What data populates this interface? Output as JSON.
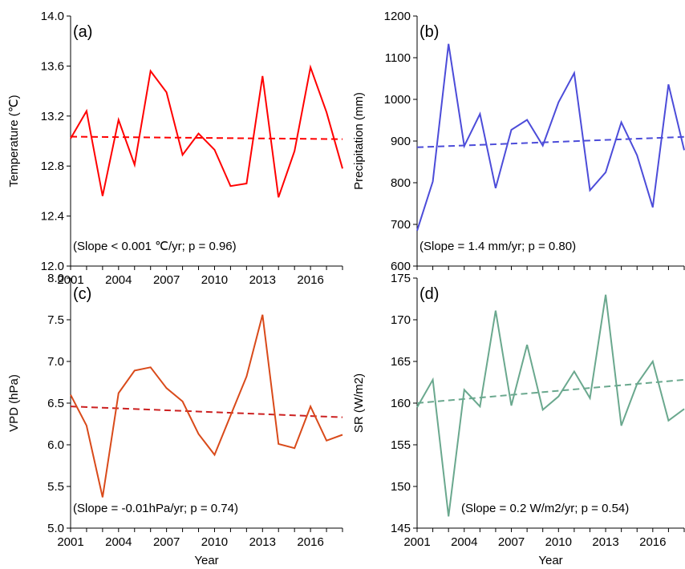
{
  "chart_data": [
    {
      "type": "line",
      "panel_label": "(a)",
      "ylabel": "Temperature (℃)",
      "xlabel": "",
      "annotation": "(Slope < 0.001 ℃/yr; p = 0.96)",
      "ylim": [
        12.0,
        14.0
      ],
      "yticks": [
        "12.0",
        "12.4",
        "12.8",
        "13.2",
        "13.6",
        "14.0"
      ],
      "xlim": [
        2001,
        2018
      ],
      "xticks": [
        "2001",
        "2004",
        "2007",
        "2010",
        "2013",
        "2016"
      ],
      "grid": false,
      "color": "#ff0000",
      "trend_color": "#ff0000",
      "x": [
        2001,
        2002,
        2003,
        2004,
        2005,
        2006,
        2007,
        2008,
        2009,
        2010,
        2011,
        2012,
        2013,
        2014,
        2015,
        2016,
        2017,
        2018
      ],
      "values": [
        13.02,
        13.24,
        12.56,
        13.17,
        12.81,
        13.56,
        13.39,
        12.89,
        13.06,
        12.93,
        12.64,
        12.66,
        13.52,
        12.55,
        12.92,
        13.59,
        13.23,
        12.78
      ],
      "trend": [
        13.035,
        13.015
      ]
    },
    {
      "type": "line",
      "panel_label": "(b)",
      "ylabel": "Precipitation (mm)",
      "xlabel": "",
      "annotation": "(Slope = 1.4 mm/yr; p = 0.80)",
      "ylim": [
        600,
        1200
      ],
      "yticks": [
        "600",
        "700",
        "800",
        "900",
        "1000",
        "1100",
        "1200"
      ],
      "xlim": [
        2001,
        2018
      ],
      "xticks": [],
      "grid": false,
      "color": "#4c4cd9",
      "trend_color": "#4c4cd9",
      "x": [
        2001,
        2002,
        2003,
        2004,
        2005,
        2006,
        2007,
        2008,
        2009,
        2010,
        2011,
        2012,
        2013,
        2014,
        2015,
        2016,
        2017,
        2018
      ],
      "values": [
        685,
        803,
        1133,
        888,
        965,
        787,
        927,
        951,
        889,
        993,
        1063,
        782,
        825,
        945,
        866,
        741,
        1036,
        878
      ],
      "trend": [
        885,
        910
      ]
    },
    {
      "type": "line",
      "panel_label": "(c)",
      "ylabel": "VPD (hPa)",
      "xlabel": "Year",
      "annotation": "(Slope = -0.01hPa/yr; p = 0.74)",
      "ylim": [
        5.0,
        8.0
      ],
      "yticks": [
        "5.0",
        "5.5",
        "6.0",
        "6.5",
        "7.0",
        "7.5",
        "8.0"
      ],
      "xlim": [
        2001,
        2018
      ],
      "xticks": [
        "2001",
        "2004",
        "2007",
        "2010",
        "2013",
        "2016"
      ],
      "grid": false,
      "color": "#d94a1a",
      "trend_color": "#cc2020",
      "x": [
        2001,
        2002,
        2003,
        2004,
        2005,
        2006,
        2007,
        2008,
        2009,
        2010,
        2011,
        2012,
        2013,
        2014,
        2015,
        2016,
        2017,
        2018
      ],
      "values": [
        6.6,
        6.23,
        5.37,
        6.62,
        6.89,
        6.93,
        6.68,
        6.52,
        6.13,
        5.88,
        6.35,
        6.82,
        7.56,
        6.01,
        5.96,
        6.46,
        6.05,
        6.12
      ],
      "trend": [
        6.46,
        6.33
      ]
    },
    {
      "type": "line",
      "panel_label": "(d)",
      "ylabel": "SR (W/m2)",
      "xlabel": "Year",
      "annotation": "(Slope = 0.2 W/m2/yr; p = 0.54)",
      "ylim": [
        145,
        175
      ],
      "yticks": [
        "145",
        "150",
        "155",
        "160",
        "165",
        "170",
        "175"
      ],
      "xlim": [
        2001,
        2018
      ],
      "xticks": [
        "2001",
        "2004",
        "2007",
        "2010",
        "2013",
        "2016"
      ],
      "grid": false,
      "color": "#6aa88e",
      "trend_color": "#6aa88e",
      "x": [
        2001,
        2002,
        2003,
        2004,
        2005,
        2006,
        2007,
        2008,
        2009,
        2010,
        2011,
        2012,
        2013,
        2014,
        2015,
        2016,
        2017,
        2018
      ],
      "values": [
        159.5,
        162.8,
        146.4,
        161.6,
        159.6,
        171.1,
        159.7,
        167.0,
        159.2,
        160.8,
        163.8,
        160.6,
        173.0,
        157.3,
        162.3,
        165.0,
        157.9,
        159.3
      ],
      "trend": [
        160.0,
        162.8
      ]
    }
  ]
}
